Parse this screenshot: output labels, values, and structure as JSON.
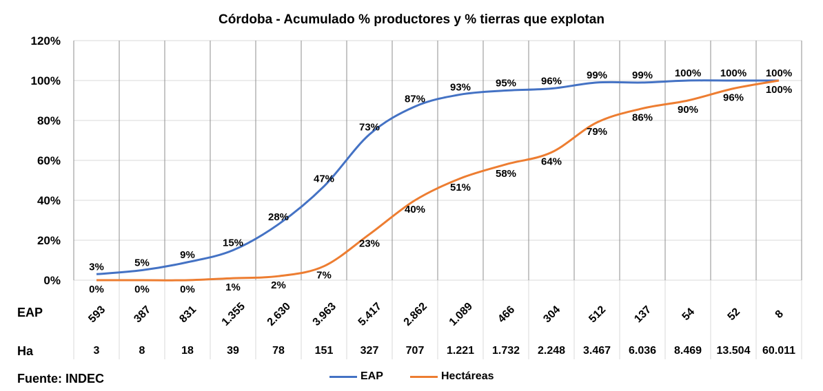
{
  "chart_data": {
    "type": "line",
    "title": "Córdoba - Acumulado % productores y % tierras que explotan",
    "categories_eap": [
      "593",
      "387",
      "831",
      "1.355",
      "2.630",
      "3.963",
      "5.417",
      "2.862",
      "1.089",
      "466",
      "304",
      "512",
      "137",
      "54",
      "52",
      "8"
    ],
    "categories_ha": [
      "3",
      "8",
      "18",
      "39",
      "78",
      "151",
      "327",
      "707",
      "1.221",
      "1.732",
      "2.248",
      "3.467",
      "6.036",
      "8.469",
      "13.504",
      "60.011"
    ],
    "row_labels": {
      "eap": "EAP",
      "ha": "Ha"
    },
    "ylim": [
      0,
      120
    ],
    "yticks": [
      "0%",
      "20%",
      "40%",
      "60%",
      "80%",
      "100%",
      "120%"
    ],
    "grid": true,
    "legend_position": "bottom",
    "series": [
      {
        "name": "EAP",
        "color": "#4472C4",
        "values": [
          3,
          5,
          9,
          15,
          28,
          47,
          73,
          87,
          93,
          95,
          96,
          99,
          99,
          100,
          100,
          100
        ]
      },
      {
        "name": "Hectáreas",
        "color": "#ED7D31",
        "values": [
          0,
          0,
          0,
          1,
          2,
          7,
          23,
          40,
          51,
          58,
          64,
          79,
          86,
          90,
          96,
          100
        ]
      }
    ],
    "source": "Fuente: INDEC"
  }
}
